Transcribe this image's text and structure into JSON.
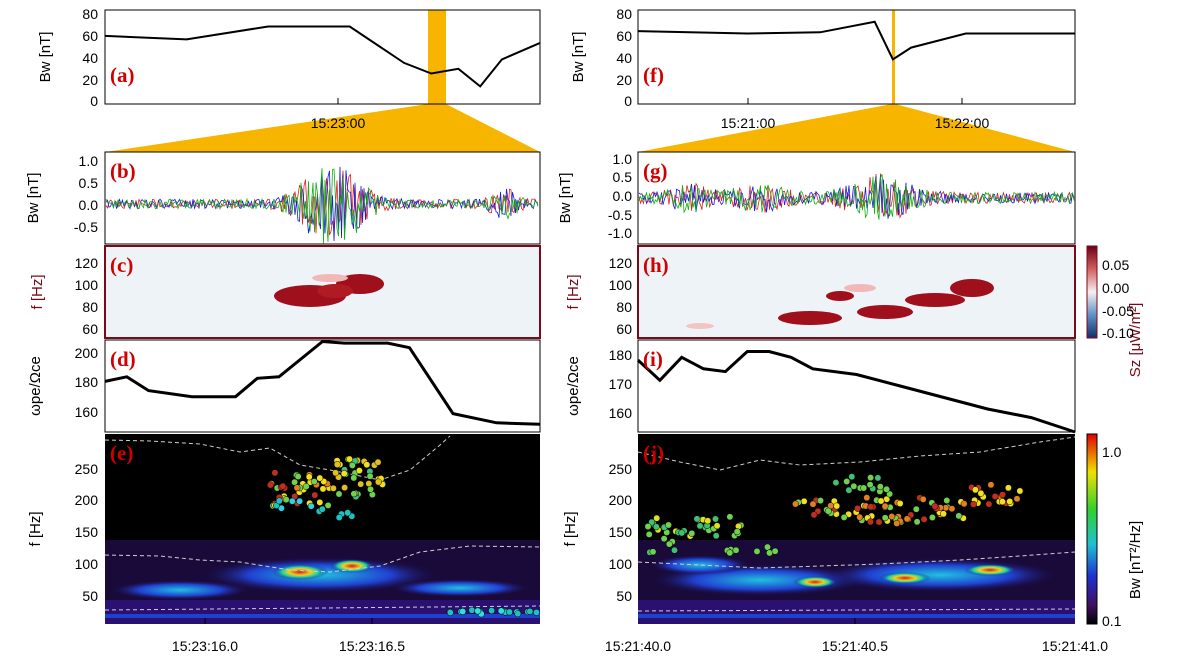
{
  "panels": {
    "a": {
      "label": "(a)",
      "ylabel": "Bw [nT]",
      "yticks": [
        "80",
        "60",
        "40",
        "20",
        "0"
      ],
      "xtick": "15:23:00"
    },
    "f": {
      "label": "(f)",
      "ylabel": "Bw [nT]",
      "yticks": [
        "80",
        "60",
        "40",
        "20",
        "0"
      ],
      "xticks": [
        "15:21:00",
        "15:22:00"
      ]
    },
    "b": {
      "label": "(b)",
      "ylabel": "Bw [nT]",
      "yticks": [
        "1.0",
        "0.5",
        "0.0",
        "-0.5"
      ]
    },
    "g": {
      "label": "(g)",
      "ylabel": "Bw [nT]",
      "yticks": [
        "1.0",
        "0.5",
        "0.0",
        "-0.5",
        "-1.0"
      ]
    },
    "c": {
      "label": "(c)",
      "ylabel": "f [Hz]",
      "yticks": [
        "120",
        "100",
        "80",
        "60"
      ]
    },
    "h": {
      "label": "(h)",
      "ylabel": "f [Hz]",
      "yticks": [
        "120",
        "100",
        "80",
        "60"
      ]
    },
    "d": {
      "label": "(d)",
      "ylabel": "ωpe/Ωce",
      "yticks": [
        "200",
        "180",
        "160"
      ]
    },
    "i": {
      "label": "(i)",
      "ylabel": "ωpe/Ωce",
      "yticks": [
        "180",
        "170",
        "160"
      ]
    },
    "e": {
      "label": "(e)",
      "ylabel": "f [Hz]",
      "yticks": [
        "250",
        "200",
        "150",
        "100",
        "50"
      ],
      "xticks": [
        "15:23:16.0",
        "15:23:16.5"
      ]
    },
    "j": {
      "label": "(j)",
      "ylabel": "f [Hz]",
      "yticks": [
        "250",
        "200",
        "150",
        "100",
        "50"
      ],
      "xticks": [
        "15:21:40.0",
        "15:21:40.5",
        "15:21:41.0"
      ]
    }
  },
  "colorbars": {
    "sz": {
      "label": "Sz [μW/m²]",
      "ticks": [
        "0.05",
        "0.00",
        "-0.05",
        "-0.10"
      ]
    },
    "bw": {
      "label": "Bw [nT²/Hz]",
      "ticks": [
        "1.0",
        "0.1"
      ]
    }
  },
  "colors": {
    "highlight": "#f7b500",
    "panel_label": "#d00000",
    "sz_label": "#7a0a18",
    "comp1": "#e02020",
    "comp2": "#1a1ae0",
    "comp3": "#10b010"
  },
  "chart_data": [
    {
      "type": "line",
      "panel": "a",
      "ylabel": "Bw [nT]",
      "ylim": [
        0,
        80
      ],
      "series": [
        {
          "x": [
            "15:22:05",
            "15:22:20",
            "15:22:35",
            "15:22:50",
            "15:23:00",
            "15:23:05",
            "15:23:10",
            "15:23:14",
            "15:23:18",
            "15:23:25"
          ],
          "y": [
            58,
            55,
            66,
            66,
            35,
            26,
            30,
            15,
            38,
            52
          ]
        }
      ]
    },
    {
      "type": "line",
      "panel": "f",
      "ylabel": "Bw [nT]",
      "ylim": [
        0,
        80
      ],
      "series": [
        {
          "x": [
            "15:20:30",
            "15:21:00",
            "15:21:20",
            "15:21:35",
            "15:21:40",
            "15:21:45",
            "15:22:00",
            "15:22:30"
          ],
          "y": [
            62,
            60,
            61,
            70,
            38,
            48,
            60,
            60
          ]
        }
      ]
    },
    {
      "type": "line",
      "panel": "b",
      "ylabel": "Bw [nT]",
      "ylim": [
        -0.9,
        1.2
      ]
    },
    {
      "type": "line",
      "panel": "g",
      "ylabel": "Bw [nT]",
      "ylim": [
        -1.3,
        1.2
      ]
    },
    {
      "type": "heatmap",
      "panel": "c",
      "ylabel": "f [Hz]",
      "ylim": [
        50,
        130
      ]
    },
    {
      "type": "heatmap",
      "panel": "h",
      "ylabel": "f [Hz]",
      "ylim": [
        50,
        130
      ]
    },
    {
      "type": "line",
      "panel": "d",
      "ylabel": "ωpe/Ωce",
      "ylim": [
        145,
        205
      ],
      "series": [
        {
          "x": [
            0,
            0.05,
            0.1,
            0.2,
            0.3,
            0.35,
            0.4,
            0.5,
            0.55,
            0.65,
            0.7,
            0.8,
            0.9,
            1.0
          ],
          "y": [
            178,
            181,
            172,
            168,
            168,
            180,
            181,
            204,
            203,
            203,
            200,
            157,
            151,
            150
          ]
        }
      ]
    },
    {
      "type": "line",
      "panel": "i",
      "ylabel": "ωpe/Ωce",
      "ylim": [
        155,
        187
      ],
      "series": [
        {
          "x": [
            0,
            0.05,
            0.1,
            0.15,
            0.2,
            0.25,
            0.3,
            0.35,
            0.4,
            0.5,
            0.6,
            0.7,
            0.8,
            0.9,
            1.0
          ],
          "y": [
            180,
            173,
            181,
            177,
            176,
            183,
            183,
            181,
            177,
            175,
            171,
            167,
            163,
            160,
            155
          ]
        }
      ]
    },
    {
      "type": "heatmap",
      "panel": "e",
      "ylabel": "f [Hz]",
      "ylim": [
        10,
        290
      ]
    },
    {
      "type": "heatmap",
      "panel": "j",
      "ylabel": "f [Hz]",
      "ylim": [
        10,
        290
      ]
    }
  ]
}
